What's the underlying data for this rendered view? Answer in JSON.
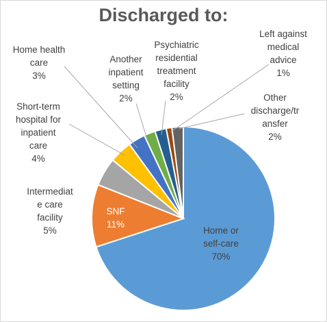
{
  "chart_data": {
    "type": "pie",
    "title": "Discharged to:",
    "categories": [
      "Home or self-care",
      "SNF",
      "Intermediate care facility",
      "Short-term hospital for inpatient care",
      "Home health care",
      "Another inpatient setting",
      "Psychiatric residential treatment facility",
      "Left against medical advice",
      "Other discharge/transfer"
    ],
    "values": [
      70,
      11,
      5,
      4,
      3,
      2,
      2,
      1,
      2
    ],
    "value_labels": [
      "70%",
      "11%",
      "5%",
      "4%",
      "3%",
      "2%",
      "2%",
      "1%",
      "2%"
    ],
    "colors": [
      "#5b9bd5",
      "#ed7d31",
      "#a5a5a5",
      "#ffc000",
      "#4472c4",
      "#70ad47",
      "#255e91",
      "#9e480e",
      "#636363"
    ],
    "label_lines": [
      [
        "Home or",
        "self-care",
        "70%"
      ],
      [
        "SNF",
        "11%"
      ],
      [
        "Intermediat",
        "e care",
        "facility",
        "5%"
      ],
      [
        "Short-term",
        "hospital for",
        "inpatient",
        "care",
        "4%"
      ],
      [
        "Home health",
        "care",
        "3%"
      ],
      [
        "Another",
        "inpatient",
        "setting",
        "2%"
      ],
      [
        "Psychiatric",
        "residential",
        "treatment",
        "facility",
        "2%"
      ],
      [
        "Left against",
        "medical",
        "advice",
        "1%"
      ],
      [
        "Other",
        "discharge/tr",
        "ansfer",
        "2%"
      ]
    ],
    "legend": "none"
  }
}
